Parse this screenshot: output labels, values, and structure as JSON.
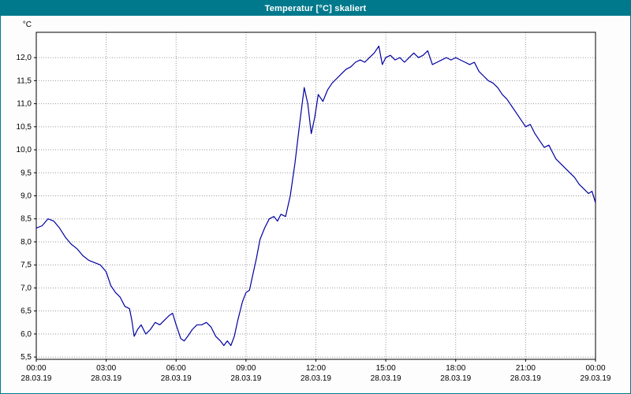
{
  "window": {
    "title": "Temperatur [°C] skaliert"
  },
  "colors": {
    "titlebar": "#00798c",
    "title_text": "#ffffff",
    "plot_background": "#ffffff",
    "plot_border": "#000000",
    "grid": "#999999",
    "line": "#0000a0",
    "axis_text": "#000000"
  },
  "chart_data": {
    "type": "line",
    "title": "Temperatur [°C] skaliert",
    "ylabel": "°C",
    "xlabel": "",
    "ylim": [
      5.45,
      12.55
    ],
    "yticks": [
      5.5,
      6.0,
      6.5,
      7.0,
      7.5,
      8.0,
      8.5,
      9.0,
      9.5,
      10.0,
      10.5,
      11.0,
      11.5,
      12.0
    ],
    "xlim_hours": [
      0,
      24
    ],
    "grid": "dotted",
    "legend_position": "none",
    "xticks": [
      {
        "time": "00:00",
        "date": "28.03.19"
      },
      {
        "time": "03:00",
        "date": "28.03.19"
      },
      {
        "time": "06:00",
        "date": "28.03.19"
      },
      {
        "time": "09:00",
        "date": "28.03.19"
      },
      {
        "time": "12:00",
        "date": "28.03.19"
      },
      {
        "time": "15:00",
        "date": "28.03.19"
      },
      {
        "time": "18:00",
        "date": "28.03.19"
      },
      {
        "time": "21:00",
        "date": "28.03.19"
      },
      {
        "time": "00:00",
        "date": "29.03.19"
      }
    ],
    "series": [
      {
        "name": "Temperatur",
        "points": [
          [
            0,
            8.3
          ],
          [
            0.25,
            8.35
          ],
          [
            0.5,
            8.5
          ],
          [
            0.75,
            8.45
          ],
          [
            1,
            8.3
          ],
          [
            1.25,
            8.1
          ],
          [
            1.5,
            7.95
          ],
          [
            1.75,
            7.85
          ],
          [
            2,
            7.7
          ],
          [
            2.25,
            7.6
          ],
          [
            2.5,
            7.55
          ],
          [
            2.75,
            7.5
          ],
          [
            3,
            7.35
          ],
          [
            3.2,
            7.05
          ],
          [
            3.4,
            6.9
          ],
          [
            3.6,
            6.8
          ],
          [
            3.8,
            6.6
          ],
          [
            4,
            6.55
          ],
          [
            4.1,
            6.3
          ],
          [
            4.2,
            5.95
          ],
          [
            4.35,
            6.1
          ],
          [
            4.5,
            6.2
          ],
          [
            4.7,
            6.0
          ],
          [
            4.9,
            6.1
          ],
          [
            5.1,
            6.25
          ],
          [
            5.3,
            6.2
          ],
          [
            5.5,
            6.3
          ],
          [
            5.7,
            6.4
          ],
          [
            5.85,
            6.45
          ],
          [
            6,
            6.2
          ],
          [
            6.2,
            5.9
          ],
          [
            6.35,
            5.85
          ],
          [
            6.5,
            5.95
          ],
          [
            6.7,
            6.1
          ],
          [
            6.9,
            6.2
          ],
          [
            7.1,
            6.2
          ],
          [
            7.3,
            6.25
          ],
          [
            7.5,
            6.15
          ],
          [
            7.7,
            5.95
          ],
          [
            7.9,
            5.85
          ],
          [
            8.05,
            5.75
          ],
          [
            8.2,
            5.85
          ],
          [
            8.35,
            5.75
          ],
          [
            8.5,
            5.95
          ],
          [
            8.65,
            6.3
          ],
          [
            8.85,
            6.7
          ],
          [
            9,
            6.9
          ],
          [
            9.15,
            6.95
          ],
          [
            9.3,
            7.3
          ],
          [
            9.45,
            7.65
          ],
          [
            9.6,
            8.05
          ],
          [
            9.8,
            8.3
          ],
          [
            10,
            8.5
          ],
          [
            10.2,
            8.55
          ],
          [
            10.35,
            8.45
          ],
          [
            10.5,
            8.6
          ],
          [
            10.7,
            8.55
          ],
          [
            10.9,
            9.0
          ],
          [
            11.1,
            9.7
          ],
          [
            11.3,
            10.55
          ],
          [
            11.5,
            11.35
          ],
          [
            11.65,
            11.0
          ],
          [
            11.8,
            10.35
          ],
          [
            11.95,
            10.7
          ],
          [
            12.1,
            11.2
          ],
          [
            12.3,
            11.05
          ],
          [
            12.5,
            11.3
          ],
          [
            12.7,
            11.45
          ],
          [
            12.9,
            11.55
          ],
          [
            13.1,
            11.65
          ],
          [
            13.3,
            11.75
          ],
          [
            13.5,
            11.8
          ],
          [
            13.7,
            11.9
          ],
          [
            13.9,
            11.95
          ],
          [
            14.1,
            11.9
          ],
          [
            14.3,
            12.0
          ],
          [
            14.5,
            12.1
          ],
          [
            14.7,
            12.25
          ],
          [
            14.85,
            11.85
          ],
          [
            15,
            12.0
          ],
          [
            15.2,
            12.05
          ],
          [
            15.4,
            11.95
          ],
          [
            15.6,
            12.0
          ],
          [
            15.8,
            11.9
          ],
          [
            16,
            12.0
          ],
          [
            16.2,
            12.1
          ],
          [
            16.4,
            12.0
          ],
          [
            16.6,
            12.05
          ],
          [
            16.8,
            12.15
          ],
          [
            17,
            11.85
          ],
          [
            17.2,
            11.9
          ],
          [
            17.4,
            11.95
          ],
          [
            17.6,
            12.0
          ],
          [
            17.8,
            11.95
          ],
          [
            18,
            12.0
          ],
          [
            18.2,
            11.95
          ],
          [
            18.4,
            11.9
          ],
          [
            18.6,
            11.85
          ],
          [
            18.8,
            11.9
          ],
          [
            19,
            11.7
          ],
          [
            19.2,
            11.6
          ],
          [
            19.4,
            11.5
          ],
          [
            19.6,
            11.45
          ],
          [
            19.8,
            11.35
          ],
          [
            20,
            11.2
          ],
          [
            20.2,
            11.1
          ],
          [
            20.4,
            10.95
          ],
          [
            20.6,
            10.8
          ],
          [
            20.8,
            10.65
          ],
          [
            21,
            10.5
          ],
          [
            21.2,
            10.55
          ],
          [
            21.4,
            10.35
          ],
          [
            21.6,
            10.2
          ],
          [
            21.8,
            10.05
          ],
          [
            22,
            10.1
          ],
          [
            22.15,
            9.95
          ],
          [
            22.3,
            9.8
          ],
          [
            22.5,
            9.7
          ],
          [
            22.7,
            9.6
          ],
          [
            22.9,
            9.5
          ],
          [
            23.1,
            9.4
          ],
          [
            23.3,
            9.25
          ],
          [
            23.5,
            9.15
          ],
          [
            23.7,
            9.05
          ],
          [
            23.85,
            9.1
          ],
          [
            24,
            8.85
          ]
        ]
      }
    ]
  }
}
